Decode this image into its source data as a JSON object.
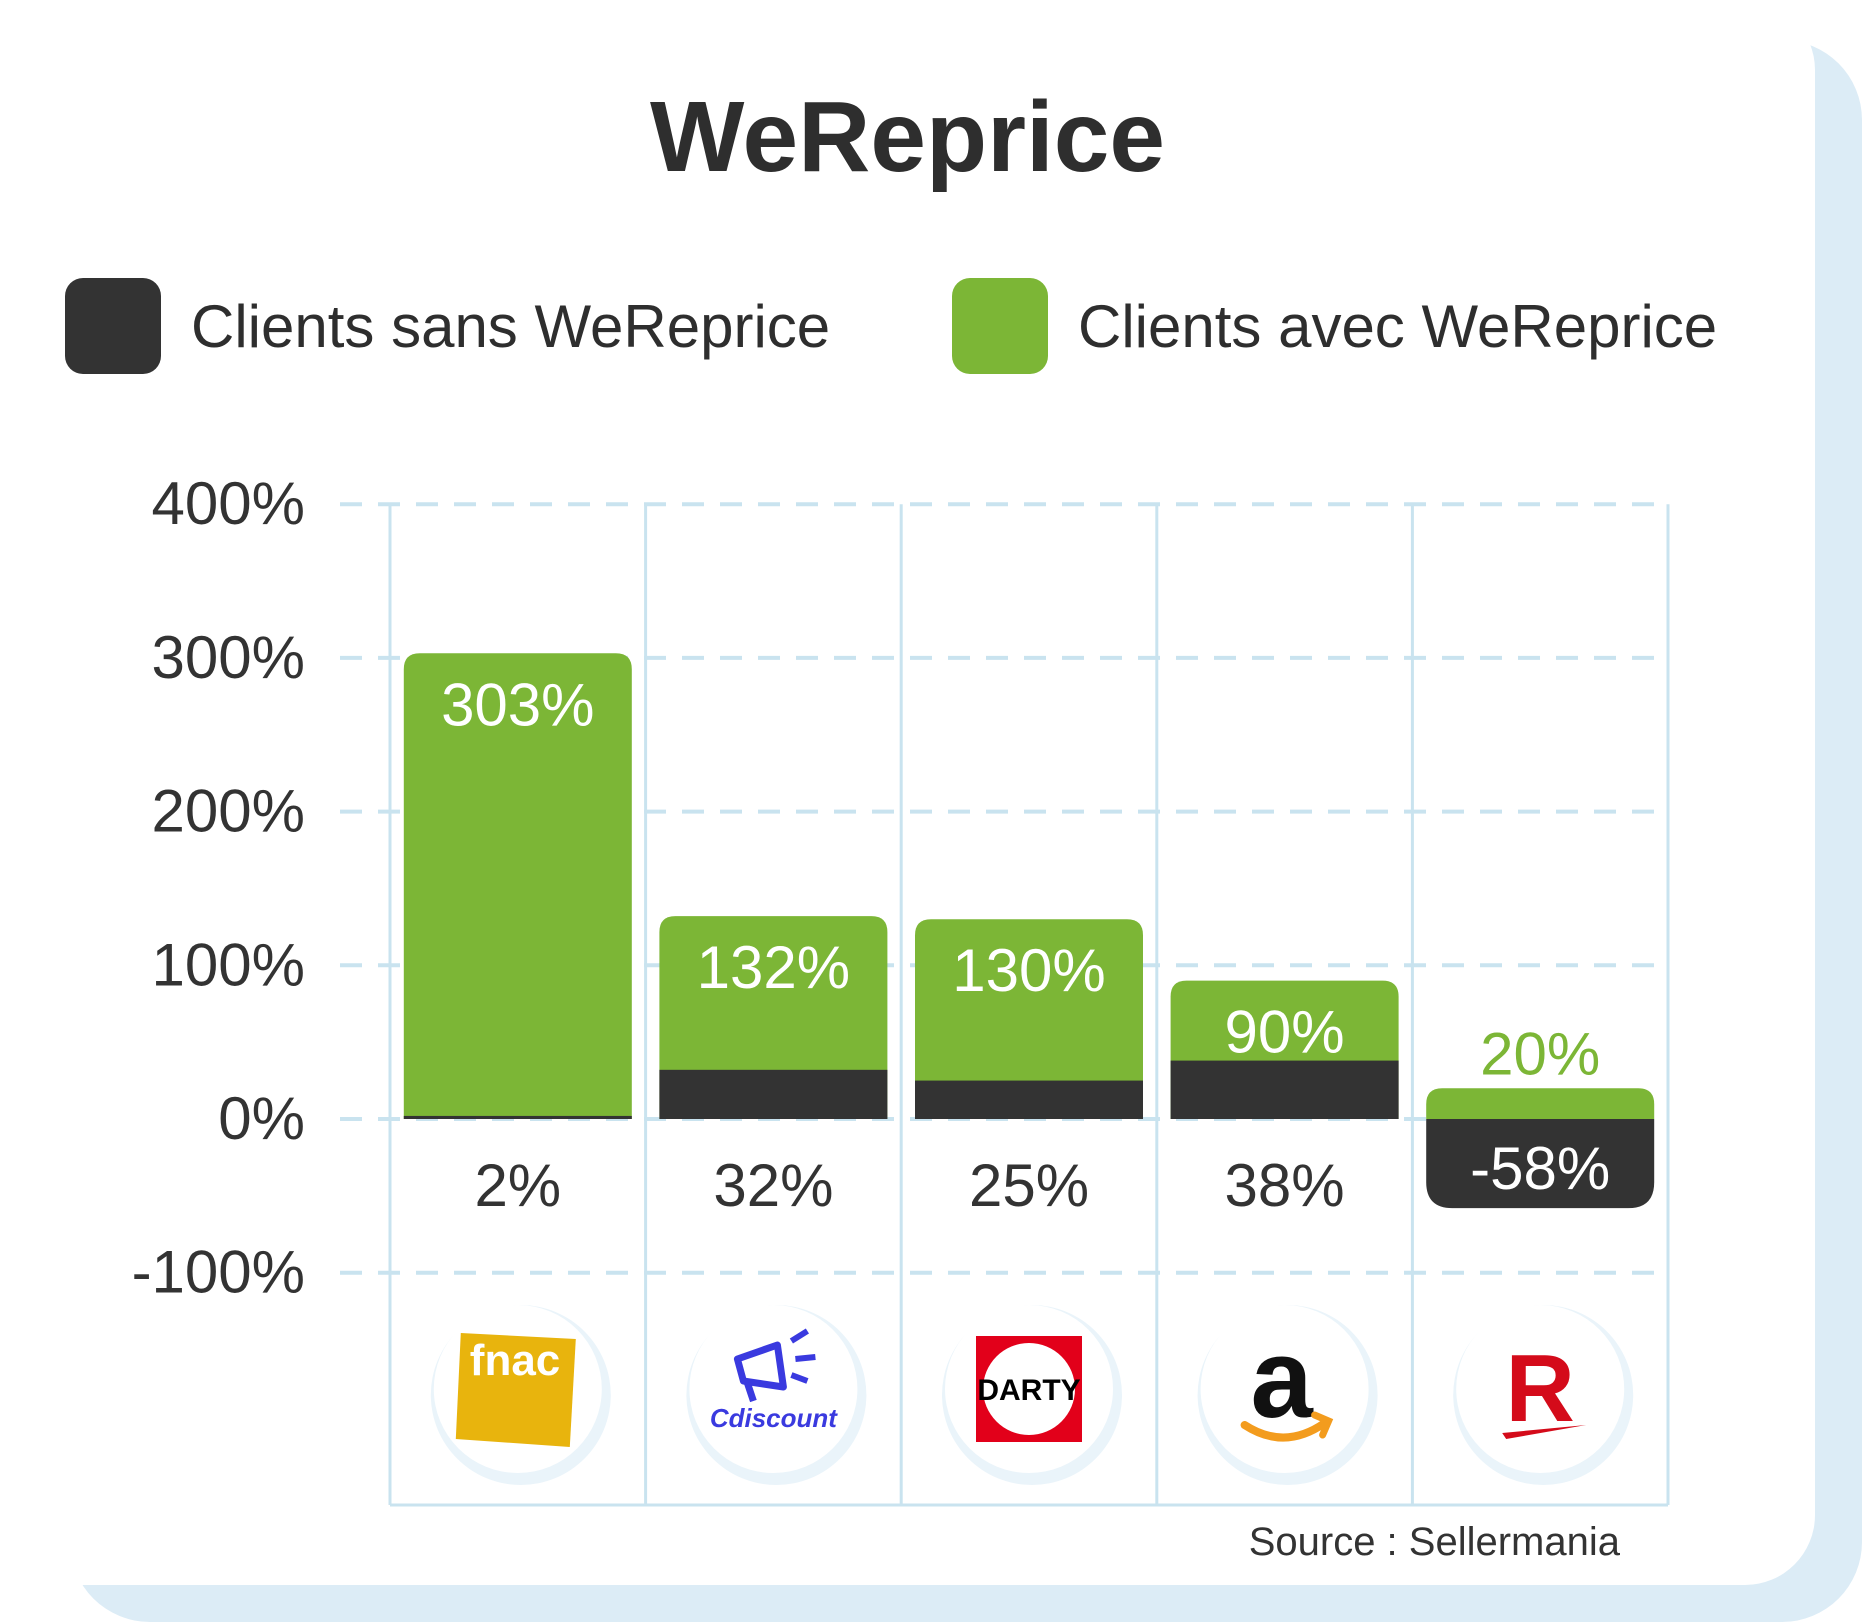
{
  "title": "WeReprice",
  "source": "Source : Sellermania",
  "legend": [
    {
      "label": "Clients sans WeReprice",
      "color": "#333333"
    },
    {
      "label": "Clients avec WeReprice",
      "color": "#7cb636"
    }
  ],
  "colors": {
    "grid": "#c9e3ef",
    "text": "#333333",
    "logo_bg": "#ffffff"
  },
  "chart_data": {
    "type": "bar",
    "categories": [
      "Fnac",
      "Cdiscount",
      "Darty",
      "Amazon",
      "Rakuten"
    ],
    "y_ticks": [
      "400%",
      "300%",
      "200%",
      "100%",
      "0%",
      "-100%"
    ],
    "ylim": [
      -100,
      400
    ],
    "grid": true,
    "legend_position": "top",
    "series": [
      {
        "name": "Clients sans WeReprice",
        "values": [
          2,
          32,
          25,
          38,
          -58
        ],
        "labels": [
          "2%",
          "32%",
          "25%",
          "38%",
          "-58%"
        ]
      },
      {
        "name": "Clients avec WeReprice",
        "values": [
          303,
          132,
          130,
          90,
          20
        ],
        "labels": [
          "303%",
          "132%",
          "130%",
          "90%",
          "20%"
        ]
      }
    ]
  },
  "logos": [
    {
      "name": "fnac-logo",
      "text": "fnac",
      "bg": "#e8b40d",
      "fg": "#ffffff"
    },
    {
      "name": "cdiscount-logo",
      "text": "Cdiscount",
      "fg": "#3a3adf"
    },
    {
      "name": "darty-logo",
      "text": "DARTY",
      "bg": "#e2001a",
      "fg": "#000000"
    },
    {
      "name": "amazon-logo",
      "text": "a",
      "fg": "#111111",
      "accent": "#f39c1e"
    },
    {
      "name": "rakuten-logo",
      "text": "R",
      "fg": "#d40b1a"
    }
  ]
}
